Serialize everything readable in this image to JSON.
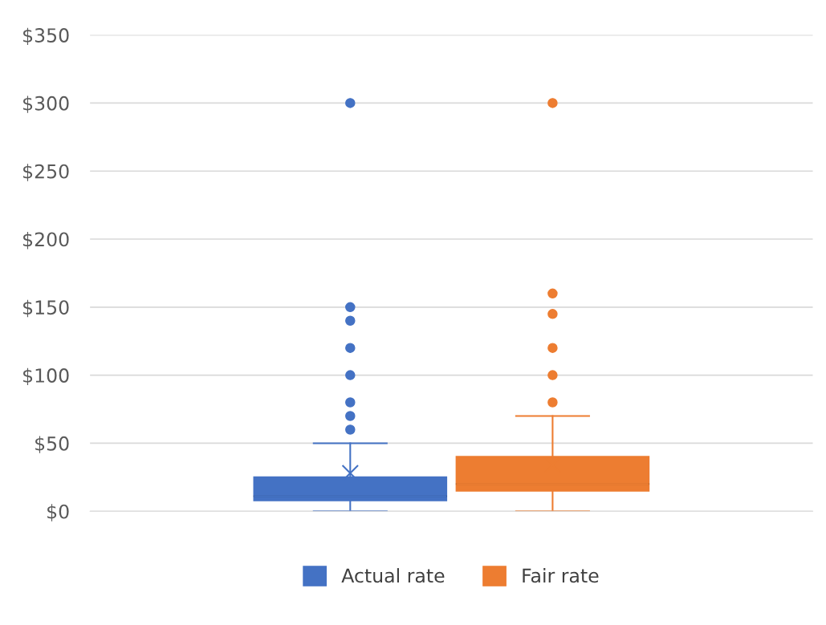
{
  "chart_data": {
    "type": "box",
    "categories": [
      null
    ],
    "series": [
      {
        "name": "Actual rate",
        "color": "#4472c4",
        "boxes": [
          {
            "low": 0,
            "q1": 8,
            "median": 11,
            "q3": 25,
            "high": 50,
            "mean": 28,
            "outliers": [
              60,
              70,
              80,
              100,
              120,
              140,
              150,
              300
            ]
          }
        ]
      },
      {
        "name": "Fair rate",
        "color": "#ed7d31",
        "boxes": [
          {
            "low": 0,
            "q1": 15,
            "median": 20,
            "q3": 40,
            "high": 70,
            "mean": 34,
            "outliers": [
              80,
              100,
              120,
              145,
              160,
              300
            ]
          }
        ]
      }
    ],
    "ylim": [
      0,
      350
    ],
    "yticks": [
      {
        "value": 0,
        "label": "$0"
      },
      {
        "value": 50,
        "label": "$50"
      },
      {
        "value": 100,
        "label": "$100"
      },
      {
        "value": 150,
        "label": "$150"
      },
      {
        "value": 200,
        "label": "$200"
      },
      {
        "value": 250,
        "label": "$250"
      },
      {
        "value": 300,
        "label": "$300"
      },
      {
        "value": 350,
        "label": "$350"
      }
    ],
    "grid": "y",
    "legend": "bottom",
    "marker": "circle"
  }
}
